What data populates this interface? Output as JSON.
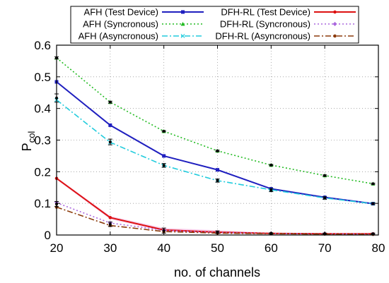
{
  "chart_data": {
    "type": "line",
    "title": "",
    "xlabel": "no. of channels",
    "ylabel": "P",
    "ylabel_sub": "col",
    "xlim": [
      20,
      80
    ],
    "ylim": [
      0,
      0.6
    ],
    "xticks": [
      "20",
      "30",
      "40",
      "50",
      "60",
      "70",
      "80"
    ],
    "yticks": [
      "0",
      "0.1",
      "0.2",
      "0.3",
      "0.4",
      "0.5",
      "0.6"
    ],
    "grid": true,
    "legend": "top",
    "x": [
      20,
      30,
      40,
      50,
      60,
      70,
      79
    ],
    "series": [
      {
        "name": "AFH (Test Device)",
        "color": "#1f1fbf",
        "dash": "solid",
        "marker": "square",
        "values": [
          0.484,
          0.347,
          0.25,
          0.206,
          0.146,
          0.119,
          0.099
        ]
      },
      {
        "name": "AFH (Syncronous)",
        "color": "#22bb22",
        "dash": "dotted",
        "marker": "triangle",
        "values": [
          0.56,
          0.42,
          0.328,
          0.266,
          0.221,
          0.188,
          0.162
        ]
      },
      {
        "name": "AFH (Asyncronous)",
        "color": "#22ccdd",
        "dash": "dashdot",
        "marker": "x",
        "values": [
          0.427,
          0.293,
          0.22,
          0.172,
          0.143,
          0.117,
          0.099
        ]
      },
      {
        "name": "DFH-RL (Test Device)",
        "color": "#dd1111",
        "dash": "solid",
        "marker": "circle",
        "values": [
          0.179,
          0.055,
          0.016,
          0.009,
          0.005,
          0.004,
          0.004
        ]
      },
      {
        "name": "DFH-RL (Syncronous)",
        "color": "#aa66dd",
        "dash": "dotted",
        "marker": "diamond",
        "values": [
          0.102,
          0.038,
          0.015,
          0.008,
          0.005,
          0.004,
          0.003
        ]
      },
      {
        "name": "DFH-RL (Asyncronous)",
        "color": "#8b3a0a",
        "dash": "dashdot",
        "marker": "circle",
        "values": [
          0.088,
          0.03,
          0.011,
          0.006,
          0.004,
          0.003,
          0.002
        ]
      }
    ],
    "error_points": {
      "color": "#000000",
      "points": [
        {
          "x": 20,
          "y": 0.433,
          "err": 0.013
        },
        {
          "x": 30,
          "y": 0.294,
          "err": 0.009
        },
        {
          "x": 40,
          "y": 0.22,
          "err": 0.006
        },
        {
          "x": 50,
          "y": 0.172,
          "err": 0.005
        },
        {
          "x": 60,
          "y": 0.142,
          "err": 0.005
        },
        {
          "x": 70,
          "y": 0.117,
          "err": 0.004
        },
        {
          "x": 79,
          "y": 0.099,
          "err": 0.003
        },
        {
          "x": 20,
          "y": 0.56,
          "err": 0.003
        },
        {
          "x": 30,
          "y": 0.42,
          "err": 0.003
        },
        {
          "x": 40,
          "y": 0.328,
          "err": 0.002
        },
        {
          "x": 50,
          "y": 0.266,
          "err": 0.002
        },
        {
          "x": 60,
          "y": 0.221,
          "err": 0.002
        },
        {
          "x": 70,
          "y": 0.188,
          "err": 0.002
        },
        {
          "x": 79,
          "y": 0.162,
          "err": 0.002
        },
        {
          "x": 20,
          "y": 0.098,
          "err": 0.008
        },
        {
          "x": 30,
          "y": 0.034,
          "err": 0.007
        },
        {
          "x": 40,
          "y": 0.014,
          "err": 0.008
        },
        {
          "x": 50,
          "y": 0.009,
          "err": 0.004
        },
        {
          "x": 60,
          "y": 0.005,
          "err": 0.002
        },
        {
          "x": 70,
          "y": 0.004,
          "err": 0.002
        },
        {
          "x": 79,
          "y": 0.004,
          "err": 0.002
        }
      ]
    },
    "shaded_band": {
      "color": "#f2a6dd",
      "x": [
        20,
        30,
        40,
        50,
        60,
        70,
        79
      ],
      "upper": [
        0.182,
        0.06,
        0.022,
        0.015,
        0.007,
        0.006,
        0.005
      ],
      "lower": [
        0.175,
        0.05,
        0.012,
        0.005,
        0.003,
        0.002,
        0.002
      ]
    }
  }
}
